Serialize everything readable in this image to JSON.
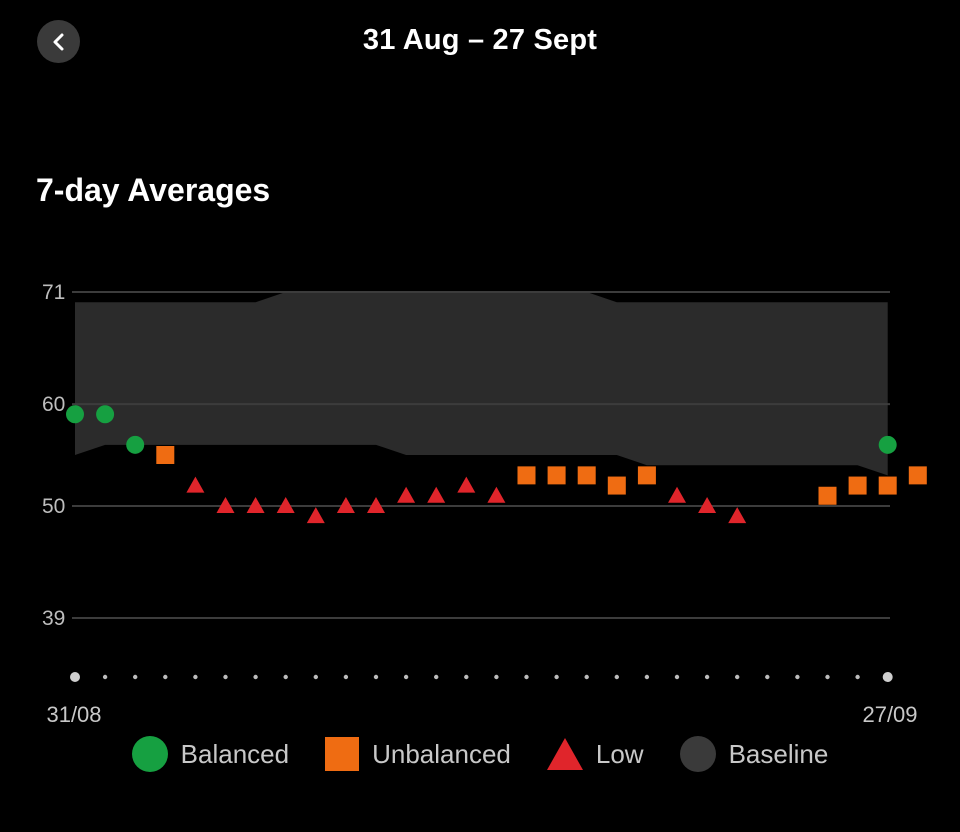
{
  "header": {
    "title": "31 Aug – 27 Sept"
  },
  "section": {
    "title": "7-day Averages"
  },
  "colors": {
    "balanced": "#16a041",
    "unbalanced": "#ef6c12",
    "low": "#e0252b",
    "baseline": "#2b2b2b",
    "grid": "#3c3c3c"
  },
  "legend": [
    {
      "key": "balanced",
      "label": "Balanced",
      "shape": "circle",
      "color": "#16a041"
    },
    {
      "key": "unbalanced",
      "label": "Unbalanced",
      "shape": "square",
      "color": "#ef6c12"
    },
    {
      "key": "low",
      "label": "Low",
      "shape": "triangle",
      "color": "#e0252b"
    },
    {
      "key": "baseline",
      "label": "Baseline",
      "shape": "circle",
      "color": "#3a3a3a"
    }
  ],
  "chart_data": {
    "type": "scatter",
    "x_labels": [
      "31/08",
      "27/09"
    ],
    "y_ticks": [
      39,
      50,
      60,
      71
    ],
    "ylim": [
      39,
      71
    ],
    "grid": true,
    "legend_position": "bottom",
    "series": [
      {
        "name": "Balanced",
        "points": [
          [
            1,
            59
          ],
          [
            2,
            59
          ],
          [
            3,
            56
          ],
          [
            28,
            56
          ]
        ]
      },
      {
        "name": "Unbalanced",
        "points": [
          [
            4,
            55
          ],
          [
            16,
            53
          ],
          [
            17,
            53
          ],
          [
            18,
            53
          ],
          [
            19,
            52
          ],
          [
            20,
            53
          ],
          [
            26,
            51
          ],
          [
            27,
            52
          ],
          [
            28,
            52
          ],
          [
            29,
            53
          ]
        ]
      },
      {
        "name": "Low",
        "points": [
          [
            5,
            52
          ],
          [
            6,
            50
          ],
          [
            7,
            50
          ],
          [
            8,
            50
          ],
          [
            9,
            49
          ],
          [
            10,
            50
          ],
          [
            11,
            50
          ],
          [
            12,
            51
          ],
          [
            13,
            51
          ],
          [
            14,
            52
          ],
          [
            15,
            51
          ],
          [
            21,
            51
          ],
          [
            22,
            50
          ],
          [
            23,
            49
          ]
        ]
      },
      {
        "name": "Baseline",
        "lower": [
          55,
          56,
          56,
          56,
          56,
          56,
          56,
          56,
          56,
          56,
          56,
          55,
          55,
          55,
          55,
          55,
          55,
          55,
          55,
          54,
          54,
          54,
          54,
          54,
          54,
          54,
          54,
          53
        ],
        "upper": [
          70,
          70,
          70,
          70,
          70,
          70,
          70,
          71,
          71,
          71,
          71,
          71,
          71,
          71,
          71,
          71,
          71,
          71,
          70,
          70,
          70,
          70,
          70,
          70,
          70,
          70,
          70,
          70
        ]
      }
    ]
  }
}
